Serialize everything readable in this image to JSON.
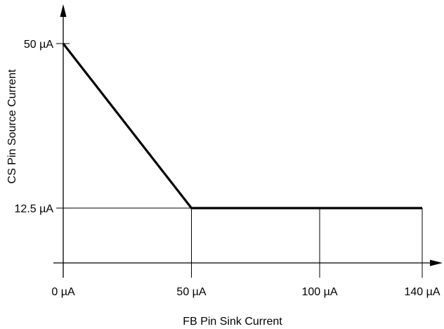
{
  "chart_data": {
    "type": "line",
    "title": "",
    "xlabel": "FB Pin Sink Current",
    "ylabel": "CS Pin Source Current",
    "x_unit": "µA",
    "y_unit": "µA",
    "xlim": [
      0,
      140
    ],
    "ylim": [
      0,
      50
    ],
    "x_ticks": [
      {
        "value": 0,
        "label": "0 µA"
      },
      {
        "value": 50,
        "label": "50 µA"
      },
      {
        "value": 100,
        "label": "100 µA"
      },
      {
        "value": 140,
        "label": "140 µA"
      }
    ],
    "y_ticks": [
      {
        "value": 12.5,
        "label": "12.5 µA"
      },
      {
        "value": 50,
        "label": "50 µA"
      }
    ],
    "grid": false,
    "series": [
      {
        "x": [
          0,
          50,
          140
        ],
        "y": [
          50,
          12.5,
          12.5
        ]
      }
    ]
  }
}
